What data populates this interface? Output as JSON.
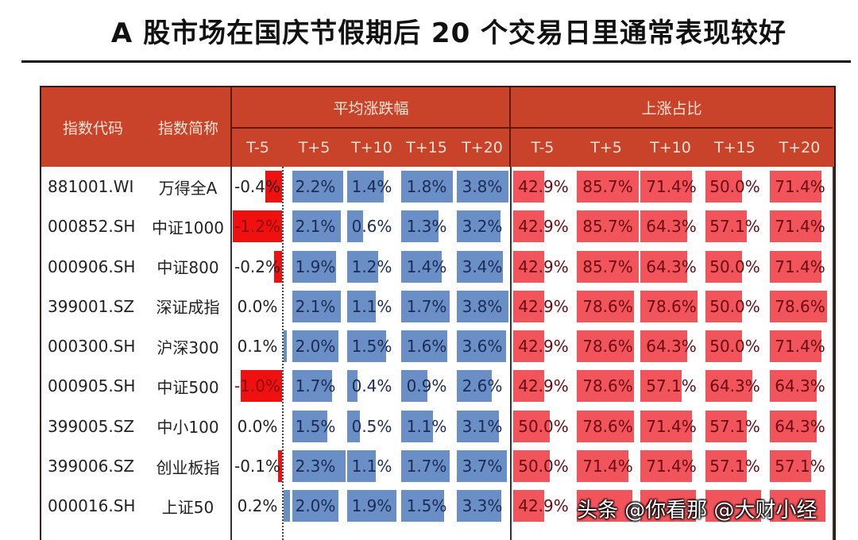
{
  "title": "A 股市场在国庆节假期后 20 个交易日里通常表现较好",
  "header": {
    "code_label": "指数代码",
    "name_label": "指数简称",
    "group_avg": "平均涨跌幅",
    "group_up": "上涨占比",
    "periods": [
      "T-5",
      "T+5",
      "T+10",
      "T+15",
      "T+20"
    ]
  },
  "rows": [
    {
      "code": "881001.WI",
      "name": "万得全A",
      "avg": [
        "-0.4%",
        "2.2%",
        "1.4%",
        "1.8%",
        "3.8%"
      ],
      "up": [
        "42.9%",
        "85.7%",
        "71.4%",
        "50.0%",
        "71.4%"
      ]
    },
    {
      "code": "000852.SH",
      "name": "中证1000",
      "avg": [
        "-1.2%",
        "2.1%",
        "0.6%",
        "1.3%",
        "3.2%"
      ],
      "up": [
        "42.9%",
        "85.7%",
        "64.3%",
        "57.1%",
        "71.4%"
      ]
    },
    {
      "code": "000906.SH",
      "name": "中证800",
      "avg": [
        "-0.2%",
        "1.9%",
        "1.2%",
        "1.4%",
        "3.4%"
      ],
      "up": [
        "42.9%",
        "85.7%",
        "64.3%",
        "50.0%",
        "71.4%"
      ]
    },
    {
      "code": "399001.SZ",
      "name": "深证成指",
      "avg": [
        "0.0%",
        "2.1%",
        "1.1%",
        "1.7%",
        "3.8%"
      ],
      "up": [
        "42.9%",
        "78.6%",
        "78.6%",
        "50.0%",
        "78.6%"
      ]
    },
    {
      "code": "000300.SH",
      "name": "沪深300",
      "avg": [
        "0.1%",
        "2.0%",
        "1.5%",
        "1.6%",
        "3.6%"
      ],
      "up": [
        "42.9%",
        "78.6%",
        "64.3%",
        "50.0%",
        "71.4%"
      ]
    },
    {
      "code": "000905.SH",
      "name": "中证500",
      "avg": [
        "-1.0%",
        "1.7%",
        "0.4%",
        "0.9%",
        "2.6%"
      ],
      "up": [
        "42.9%",
        "78.6%",
        "57.1%",
        "64.3%",
        "64.3%"
      ]
    },
    {
      "code": "399005.SZ",
      "name": "中小100",
      "avg": [
        "0.0%",
        "1.5%",
        "0.5%",
        "1.1%",
        "3.1%"
      ],
      "up": [
        "50.0%",
        "78.6%",
        "71.4%",
        "57.1%",
        "64.3%"
      ]
    },
    {
      "code": "399006.SZ",
      "name": "创业板指",
      "avg": [
        "-0.1%",
        "2.3%",
        "1.1%",
        "1.7%",
        "3.7%"
      ],
      "up": [
        "50.0%",
        "71.4%",
        "71.4%",
        "57.1%",
        "57.1%"
      ]
    },
    {
      "code": "000016.SH",
      "name": "上证50",
      "avg": [
        "0.2%",
        "2.0%",
        "1.9%",
        "1.5%",
        "3.3%"
      ],
      "up": [
        "42.9%",
        "",
        "",
        "",
        ""
      ]
    }
  ],
  "watermark": "头条 @你看那 @大财小经",
  "colors": {
    "header_bg": "#c8432a",
    "negative_bar": "#f01010",
    "positive_bar": "#6a8fc7",
    "up_ratio_bar": "#f2545b"
  },
  "chart_data": {
    "type": "table",
    "title": "A 股市场在国庆节假期后 20 个交易日里通常表现较好",
    "columns": [
      "指数代码",
      "指数简称",
      "平均涨跌幅 T-5",
      "平均涨跌幅 T+5",
      "平均涨跌幅 T+10",
      "平均涨跌幅 T+15",
      "平均涨跌幅 T+20",
      "上涨占比 T-5",
      "上涨占比 T+5",
      "上涨占比 T+10",
      "上涨占比 T+15",
      "上涨占比 T+20"
    ],
    "categories": [
      "万得全A",
      "中证1000",
      "中证800",
      "深证成指",
      "沪深300",
      "中证500",
      "中小100",
      "创业板指",
      "上证50"
    ],
    "series": [
      {
        "name": "平均涨跌幅 T-5 (%)",
        "values": [
          -0.4,
          -1.2,
          -0.2,
          0.0,
          0.1,
          -1.0,
          0.0,
          -0.1,
          0.2
        ]
      },
      {
        "name": "平均涨跌幅 T+5 (%)",
        "values": [
          2.2,
          2.1,
          1.9,
          2.1,
          2.0,
          1.7,
          1.5,
          2.3,
          2.0
        ]
      },
      {
        "name": "平均涨跌幅 T+10 (%)",
        "values": [
          1.4,
          0.6,
          1.2,
          1.1,
          1.5,
          0.4,
          0.5,
          1.1,
          1.9
        ]
      },
      {
        "name": "平均涨跌幅 T+15 (%)",
        "values": [
          1.8,
          1.3,
          1.4,
          1.7,
          1.6,
          0.9,
          1.1,
          1.7,
          1.5
        ]
      },
      {
        "name": "平均涨跌幅 T+20 (%)",
        "values": [
          3.8,
          3.2,
          3.4,
          3.8,
          3.6,
          2.6,
          3.1,
          3.7,
          3.3
        ]
      },
      {
        "name": "上涨占比 T-5 (%)",
        "values": [
          42.9,
          42.9,
          42.9,
          42.9,
          42.9,
          42.9,
          50.0,
          50.0,
          42.9
        ]
      },
      {
        "name": "上涨占比 T+5 (%)",
        "values": [
          85.7,
          85.7,
          85.7,
          78.6,
          78.6,
          78.6,
          78.6,
          71.4,
          null
        ]
      },
      {
        "name": "上涨占比 T+10 (%)",
        "values": [
          71.4,
          64.3,
          64.3,
          78.6,
          64.3,
          57.1,
          71.4,
          71.4,
          null
        ]
      },
      {
        "name": "上涨占比 T+15 (%)",
        "values": [
          50.0,
          57.1,
          50.0,
          50.0,
          50.0,
          64.3,
          57.1,
          57.1,
          null
        ]
      },
      {
        "name": "上涨占比 T+20 (%)",
        "values": [
          71.4,
          71.4,
          71.4,
          78.6,
          71.4,
          64.3,
          64.3,
          57.1,
          null
        ]
      }
    ]
  }
}
